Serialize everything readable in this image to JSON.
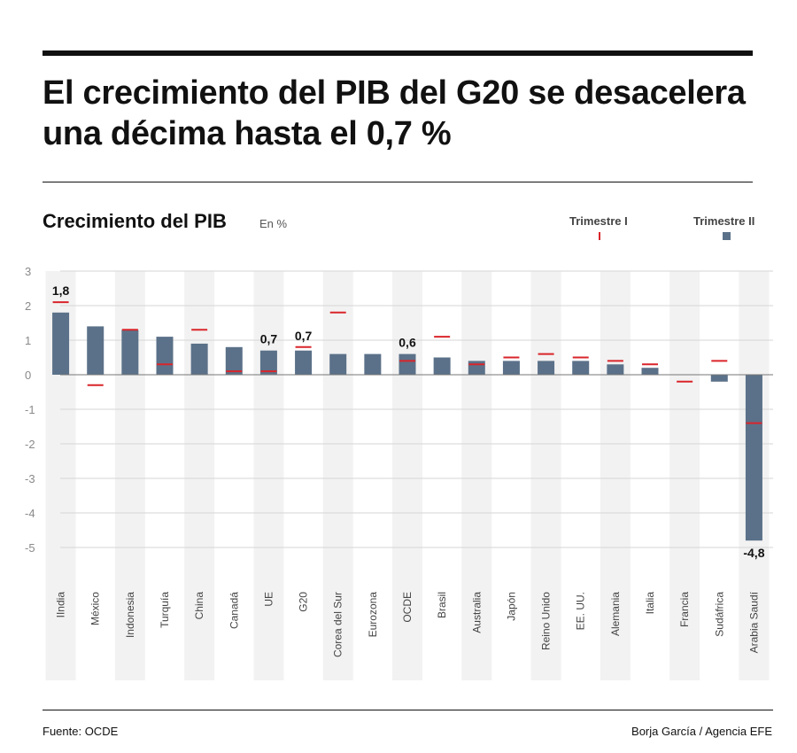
{
  "header": {
    "title": "El crecimiento del PIB del G20 se desacelera una décima hasta el 0,7 %"
  },
  "chart_data": {
    "type": "bar",
    "title": "Crecimiento del PIB",
    "unit": "En %",
    "legend": {
      "placement": "top-right",
      "items": [
        "Trimestre I",
        "Trimestre II"
      ]
    },
    "ylim": [
      -5,
      3
    ],
    "yticks": [
      "3",
      "2",
      "1",
      "0",
      "-1",
      "-2",
      "-3",
      "-4",
      "-5"
    ],
    "grid": true,
    "colors": {
      "bar": "#5b7189",
      "marker": "#d9252a",
      "band": "#f2f2f2"
    },
    "categories": [
      "IIndia",
      "México",
      "Indonesia",
      "Turquía",
      "China",
      "Canadá",
      "UE",
      "G20",
      "Corea del Sur",
      "Eurozona",
      "OCDE",
      "Brasil",
      "Australia",
      "Japón",
      "Reino Unido",
      "EE. UU.",
      "Alemania",
      "Italia",
      "Francia",
      "Sudáfrica",
      "Arabia Saudí"
    ],
    "series": [
      {
        "name": "Trimestre I",
        "style": "marker",
        "values": [
          2.1,
          -0.3,
          1.3,
          0.3,
          1.3,
          0.1,
          0.1,
          0.8,
          1.8,
          null,
          0.4,
          1.1,
          0.3,
          0.5,
          0.6,
          0.5,
          0.4,
          0.3,
          -0.2,
          0.4,
          -1.4
        ]
      },
      {
        "name": "Trimestre II",
        "style": "bar",
        "values": [
          1.8,
          1.4,
          1.3,
          1.1,
          0.9,
          0.8,
          0.7,
          0.7,
          0.6,
          0.6,
          0.6,
          0.5,
          0.4,
          0.4,
          0.4,
          0.4,
          0.3,
          0.2,
          0.0,
          -0.2,
          -4.8
        ]
      }
    ],
    "data_labels": [
      {
        "index": 0,
        "text": "1,8"
      },
      {
        "index": 6,
        "text": "0,7"
      },
      {
        "index": 7,
        "text": "0,7"
      },
      {
        "index": 10,
        "text": "0,6"
      },
      {
        "index": 20,
        "text": "-4,8"
      }
    ]
  },
  "footer": {
    "source": "Fuente: OCDE",
    "credit": "Borja García / Agencia EFE"
  }
}
